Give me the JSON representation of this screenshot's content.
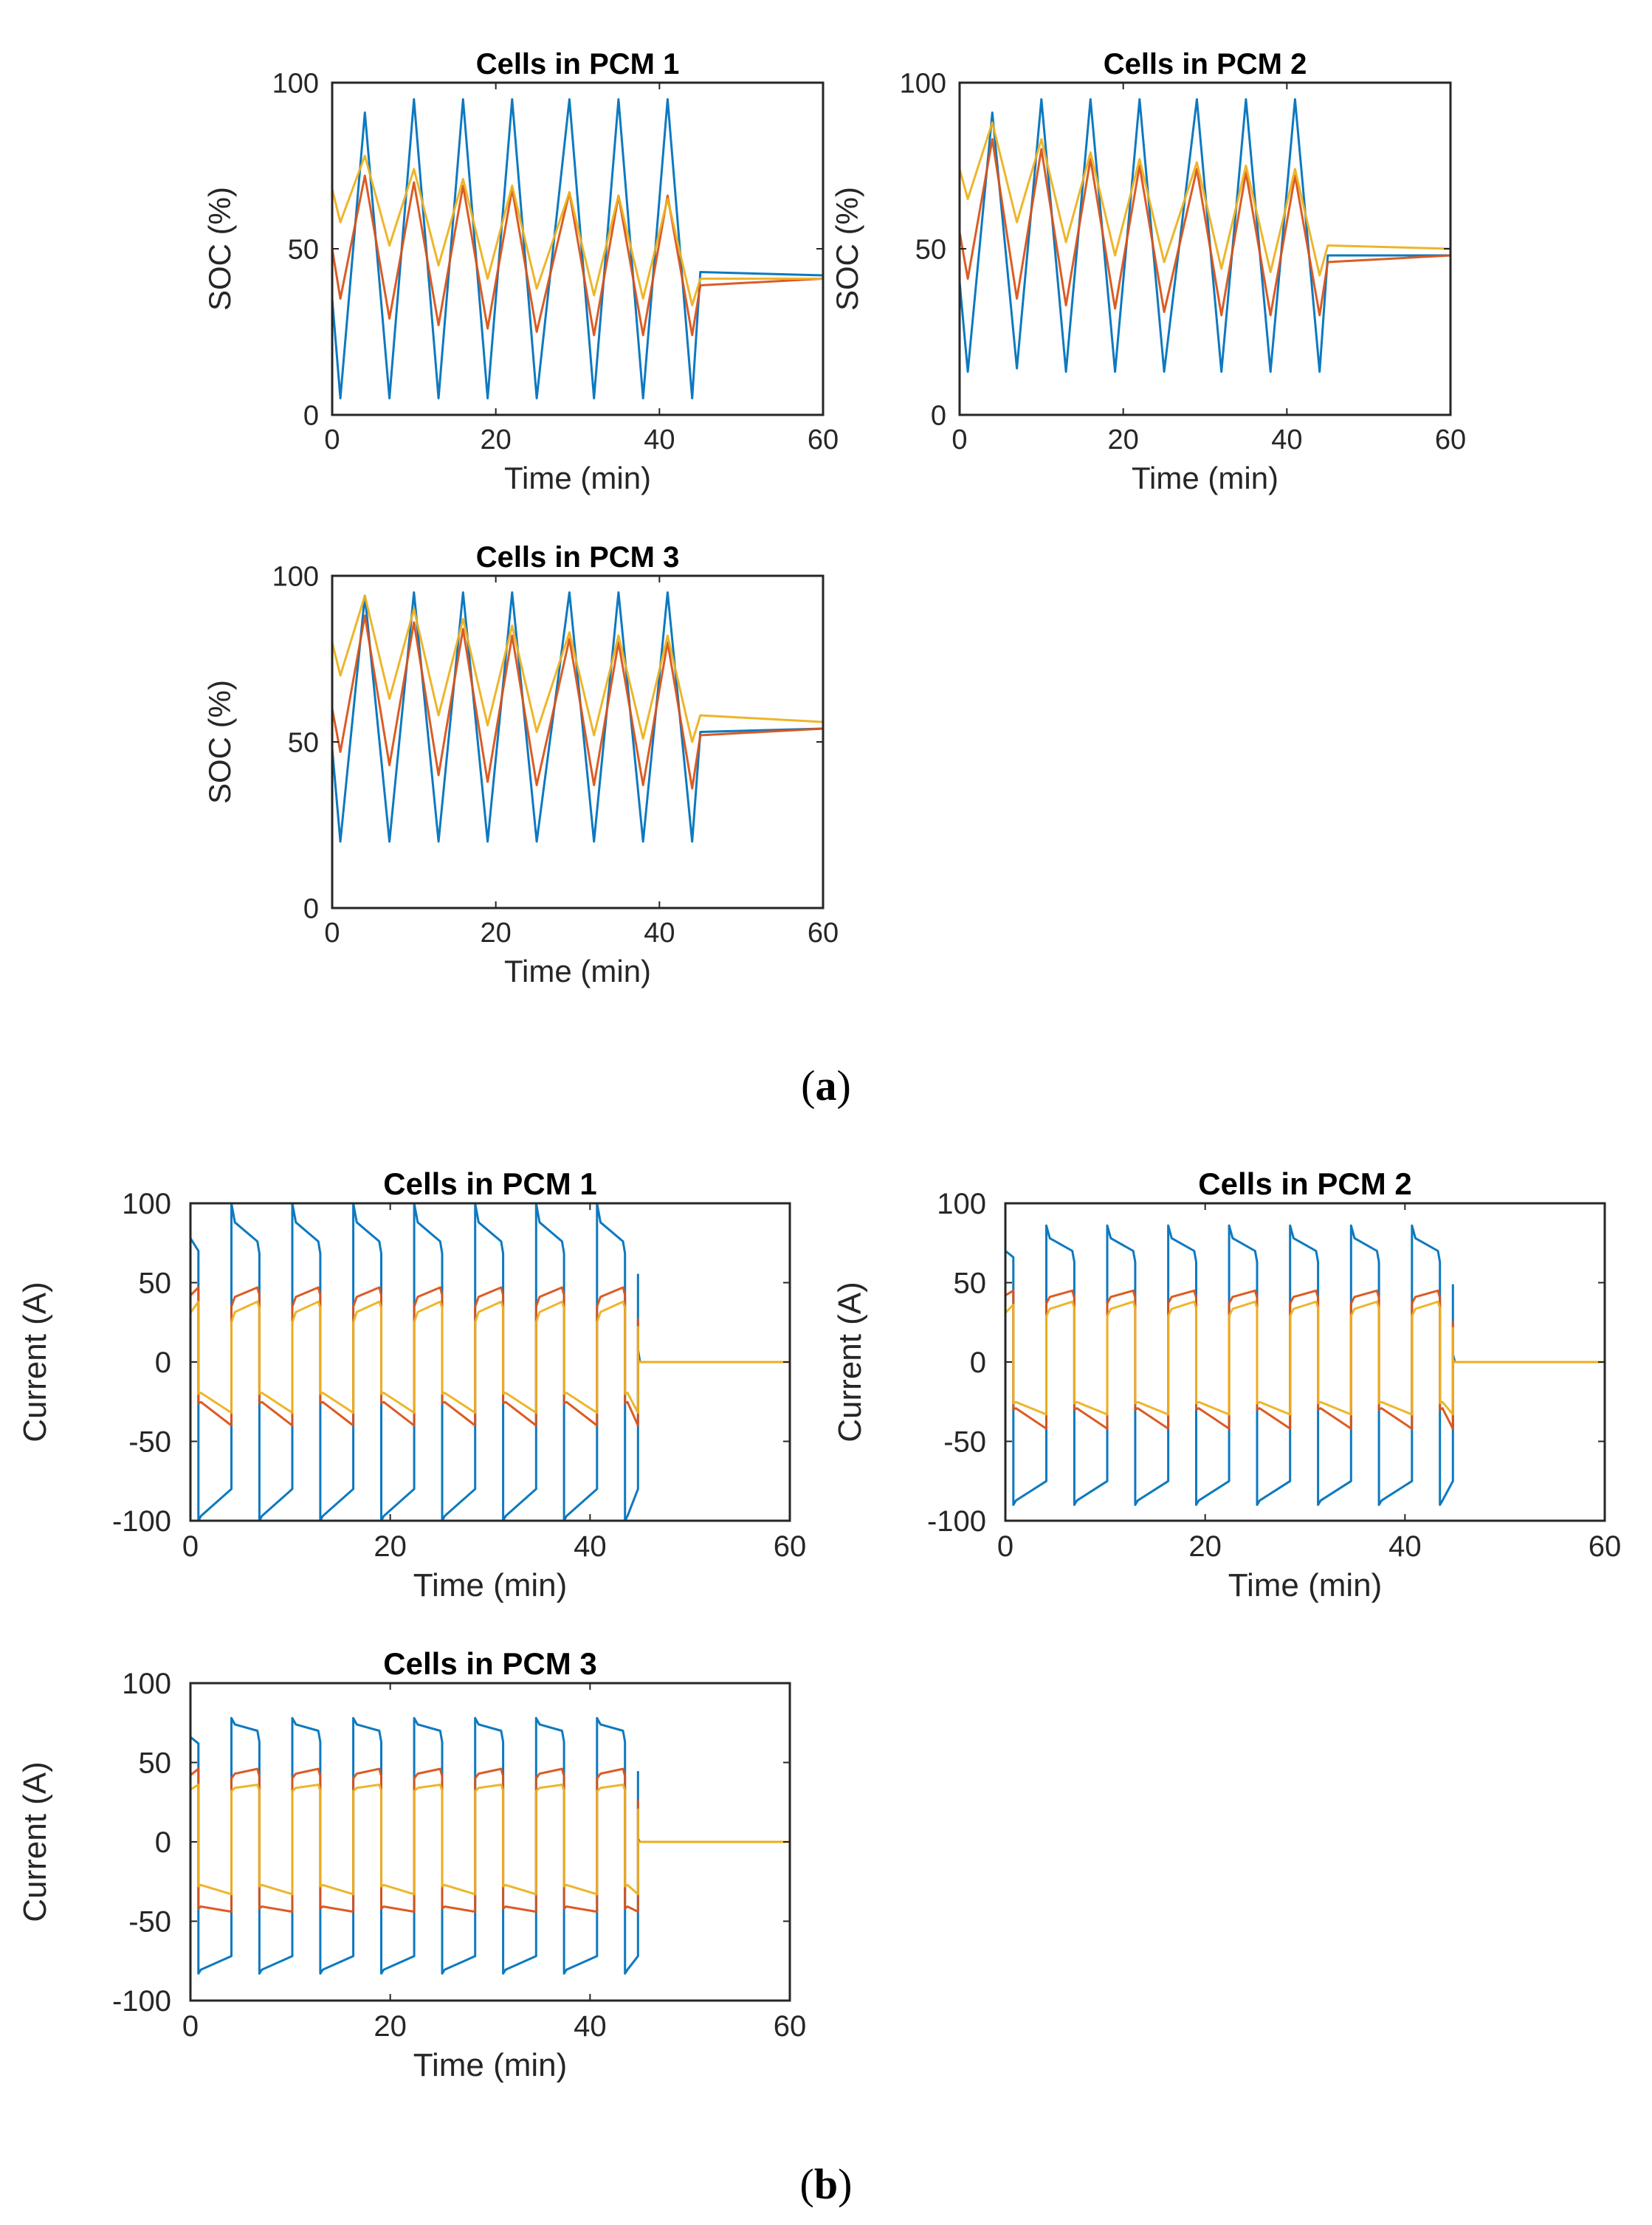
{
  "panels": [
    {
      "label_open": "(",
      "label_letter": "a",
      "label_close": ")"
    },
    {
      "label_open": "(",
      "label_letter": "b",
      "label_close": ")"
    }
  ],
  "chart_data": [
    {
      "type": "line",
      "panel": "a",
      "title": "Cells in PCM 1",
      "xlabel": "Time (min)",
      "ylabel": "SOC (%)",
      "xlim": [
        0,
        60
      ],
      "ylim": [
        0,
        100
      ],
      "xticks": [
        0,
        20,
        40,
        60
      ],
      "yticks": [
        0,
        50,
        100
      ],
      "series": [
        {
          "name": "cell-blue",
          "color": "#0072BD",
          "x": [
            0,
            1,
            4,
            7,
            10,
            13,
            16,
            19,
            22,
            25,
            29,
            32,
            35,
            38,
            41,
            44,
            45,
            60
          ],
          "y": [
            35,
            5,
            91,
            5,
            95,
            5,
            95,
            5,
            95,
            5,
            95,
            5,
            95,
            5,
            95,
            5,
            43,
            42
          ]
        },
        {
          "name": "cell-orange",
          "color": "#D95319",
          "x": [
            0,
            1,
            4,
            7,
            10,
            13,
            16,
            19,
            22,
            25,
            29,
            32,
            35,
            38,
            41,
            44,
            45,
            60
          ],
          "y": [
            50,
            35,
            72,
            29,
            70,
            27,
            69,
            26,
            68,
            25,
            67,
            24,
            66,
            24,
            66,
            24,
            39,
            41
          ]
        },
        {
          "name": "cell-yellow",
          "color": "#EDB120",
          "x": [
            0,
            1,
            4,
            7,
            10,
            13,
            16,
            19,
            22,
            25,
            29,
            32,
            35,
            38,
            41,
            44,
            45,
            60
          ],
          "y": [
            68,
            58,
            78,
            51,
            74,
            45,
            71,
            41,
            69,
            38,
            67,
            36,
            66,
            35,
            65,
            33,
            41,
            41
          ]
        }
      ]
    },
    {
      "type": "line",
      "panel": "a",
      "title": "Cells in PCM 2",
      "xlabel": "Time (min)",
      "ylabel": "SOC (%)",
      "xlim": [
        0,
        60
      ],
      "ylim": [
        0,
        100
      ],
      "xticks": [
        0,
        20,
        40,
        60
      ],
      "yticks": [
        0,
        50,
        100
      ],
      "series": [
        {
          "name": "cell-blue",
          "color": "#0072BD",
          "x": [
            0,
            1,
            4,
            7,
            10,
            13,
            16,
            19,
            22,
            25,
            29,
            32,
            35,
            38,
            41,
            44,
            45,
            60
          ],
          "y": [
            40,
            13,
            91,
            14,
            95,
            13,
            95,
            13,
            95,
            13,
            95,
            13,
            95,
            13,
            95,
            13,
            48,
            48
          ]
        },
        {
          "name": "cell-orange",
          "color": "#D95319",
          "x": [
            0,
            1,
            4,
            7,
            10,
            13,
            16,
            19,
            22,
            25,
            29,
            32,
            35,
            38,
            41,
            44,
            45,
            60
          ],
          "y": [
            55,
            41,
            83,
            35,
            80,
            33,
            77,
            32,
            75,
            31,
            74,
            30,
            73,
            30,
            72,
            30,
            46,
            48
          ]
        },
        {
          "name": "cell-yellow",
          "color": "#EDB120",
          "x": [
            0,
            1,
            4,
            7,
            10,
            13,
            16,
            19,
            22,
            25,
            29,
            32,
            35,
            38,
            41,
            44,
            45,
            60
          ],
          "y": [
            74,
            65,
            88,
            58,
            83,
            52,
            79,
            48,
            77,
            46,
            76,
            44,
            75,
            43,
            74,
            42,
            51,
            50
          ]
        }
      ]
    },
    {
      "type": "line",
      "panel": "a",
      "title": "Cells in PCM 3",
      "xlabel": "Time (min)",
      "ylabel": "SOC (%)",
      "xlim": [
        0,
        60
      ],
      "ylim": [
        0,
        100
      ],
      "xticks": [
        0,
        20,
        40,
        60
      ],
      "yticks": [
        0,
        50,
        100
      ],
      "series": [
        {
          "name": "cell-blue",
          "color": "#0072BD",
          "x": [
            0,
            1,
            4,
            7,
            10,
            13,
            16,
            19,
            22,
            25,
            29,
            32,
            35,
            38,
            41,
            44,
            45,
            60
          ],
          "y": [
            48,
            20,
            94,
            20,
            95,
            20,
            95,
            20,
            95,
            20,
            95,
            20,
            95,
            20,
            95,
            20,
            53,
            54
          ]
        },
        {
          "name": "cell-orange",
          "color": "#D95319",
          "x": [
            0,
            1,
            4,
            7,
            10,
            13,
            16,
            19,
            22,
            25,
            29,
            32,
            35,
            38,
            41,
            44,
            45,
            60
          ],
          "y": [
            60,
            47,
            88,
            43,
            86,
            40,
            84,
            38,
            82,
            37,
            81,
            37,
            80,
            37,
            80,
            36,
            52,
            54
          ]
        },
        {
          "name": "cell-yellow",
          "color": "#EDB120",
          "x": [
            0,
            1,
            4,
            7,
            10,
            13,
            16,
            19,
            22,
            25,
            29,
            32,
            35,
            38,
            41,
            44,
            45,
            60
          ],
          "y": [
            80,
            70,
            94,
            63,
            90,
            58,
            87,
            55,
            85,
            53,
            83,
            52,
            82,
            51,
            82,
            50,
            58,
            56
          ]
        }
      ]
    },
    {
      "type": "line",
      "panel": "b",
      "title": "Cells in PCM 1",
      "xlabel": "Time (min)",
      "ylabel": "Current (A)",
      "xlim": [
        0,
        60
      ],
      "ylim": [
        -100,
        100
      ],
      "xticks": [
        0,
        20,
        40,
        60
      ],
      "yticks": [
        -100,
        -50,
        0,
        50,
        100
      ],
      "pattern": {
        "switch_times": [
          0.8,
          4.1,
          6.9,
          10.2,
          13,
          16.3,
          19.1,
          22.4,
          25.2,
          28.5,
          31.3,
          34.6,
          37.4,
          40.7,
          43.5,
          44.8
        ],
        "end": 60
      },
      "series": [
        {
          "name": "cell-blue",
          "color": "#0072BD",
          "charge_start": 100,
          "charge_end": 76,
          "discharge_start": -100,
          "discharge_end": -80,
          "initial_start": 78,
          "initial_end": 70,
          "spike": 100,
          "final_spike": 8
        },
        {
          "name": "cell-orange",
          "color": "#D95319",
          "charge_start": 35,
          "charge_end": 47,
          "discharge_start": -26,
          "discharge_end": -40,
          "initial_start": 42,
          "initial_end": 47,
          "spike": 49,
          "final_spike": 2
        },
        {
          "name": "cell-yellow",
          "color": "#EDB120",
          "charge_start": 25,
          "charge_end": 38,
          "discharge_start": -20,
          "discharge_end": -32,
          "initial_start": 31,
          "initial_end": 38,
          "spike": 40,
          "final_spike": 1
        }
      ]
    },
    {
      "type": "line",
      "panel": "b",
      "title": "Cells in PCM 2",
      "xlabel": "Time (min)",
      "ylabel": "Current (A)",
      "xlim": [
        0,
        60
      ],
      "ylim": [
        -100,
        100
      ],
      "xticks": [
        0,
        20,
        40,
        60
      ],
      "yticks": [
        -100,
        -50,
        0,
        50,
        100
      ],
      "pattern": {
        "switch_times": [
          0.8,
          4.1,
          6.9,
          10.2,
          13,
          16.3,
          19.1,
          22.4,
          25.2,
          28.5,
          31.3,
          34.6,
          37.4,
          40.7,
          43.5,
          44.8
        ],
        "end": 60
      },
      "series": [
        {
          "name": "cell-blue",
          "color": "#0072BD",
          "charge_start": 86,
          "charge_end": 70,
          "discharge_start": -90,
          "discharge_end": -75,
          "initial_start": 70,
          "initial_end": 66,
          "spike": 88,
          "final_spike": 5
        },
        {
          "name": "cell-orange",
          "color": "#D95319",
          "charge_start": 37,
          "charge_end": 45,
          "discharge_start": -30,
          "discharge_end": -42,
          "initial_start": 42,
          "initial_end": 45,
          "spike": 46,
          "final_spike": 1
        },
        {
          "name": "cell-yellow",
          "color": "#EDB120",
          "charge_start": 29,
          "charge_end": 38,
          "discharge_start": -26,
          "discharge_end": -33,
          "initial_start": 31,
          "initial_end": 36,
          "spike": 39,
          "final_spike": 1
        }
      ]
    },
    {
      "type": "line",
      "panel": "b",
      "title": "Cells in PCM 3",
      "xlabel": "Time (min)",
      "ylabel": "Current (A)",
      "xlim": [
        0,
        60
      ],
      "ylim": [
        -100,
        100
      ],
      "xticks": [
        0,
        20,
        40,
        60
      ],
      "yticks": [
        -100,
        -50,
        0,
        50,
        100
      ],
      "pattern": {
        "switch_times": [
          0.8,
          4.1,
          6.9,
          10.2,
          13,
          16.3,
          19.1,
          22.4,
          25.2,
          28.5,
          31.3,
          34.6,
          37.4,
          40.7,
          43.5,
          44.8
        ],
        "end": 60
      },
      "series": [
        {
          "name": "cell-blue",
          "color": "#0072BD",
          "charge_start": 78,
          "charge_end": 70,
          "discharge_start": -83,
          "discharge_end": -72,
          "initial_start": 66,
          "initial_end": 62,
          "spike": 80,
          "final_spike": 2
        },
        {
          "name": "cell-orange",
          "color": "#D95319",
          "charge_start": 40,
          "charge_end": 46,
          "discharge_start": -42,
          "discharge_end": -44,
          "initial_start": 42,
          "initial_end": 46,
          "spike": 47,
          "final_spike": 1
        },
        {
          "name": "cell-yellow",
          "color": "#EDB120",
          "charge_start": 32,
          "charge_end": 36,
          "discharge_start": -28,
          "discharge_end": -33,
          "initial_start": 33,
          "initial_end": 36,
          "spike": 37,
          "final_spike": 0
        }
      ]
    }
  ]
}
